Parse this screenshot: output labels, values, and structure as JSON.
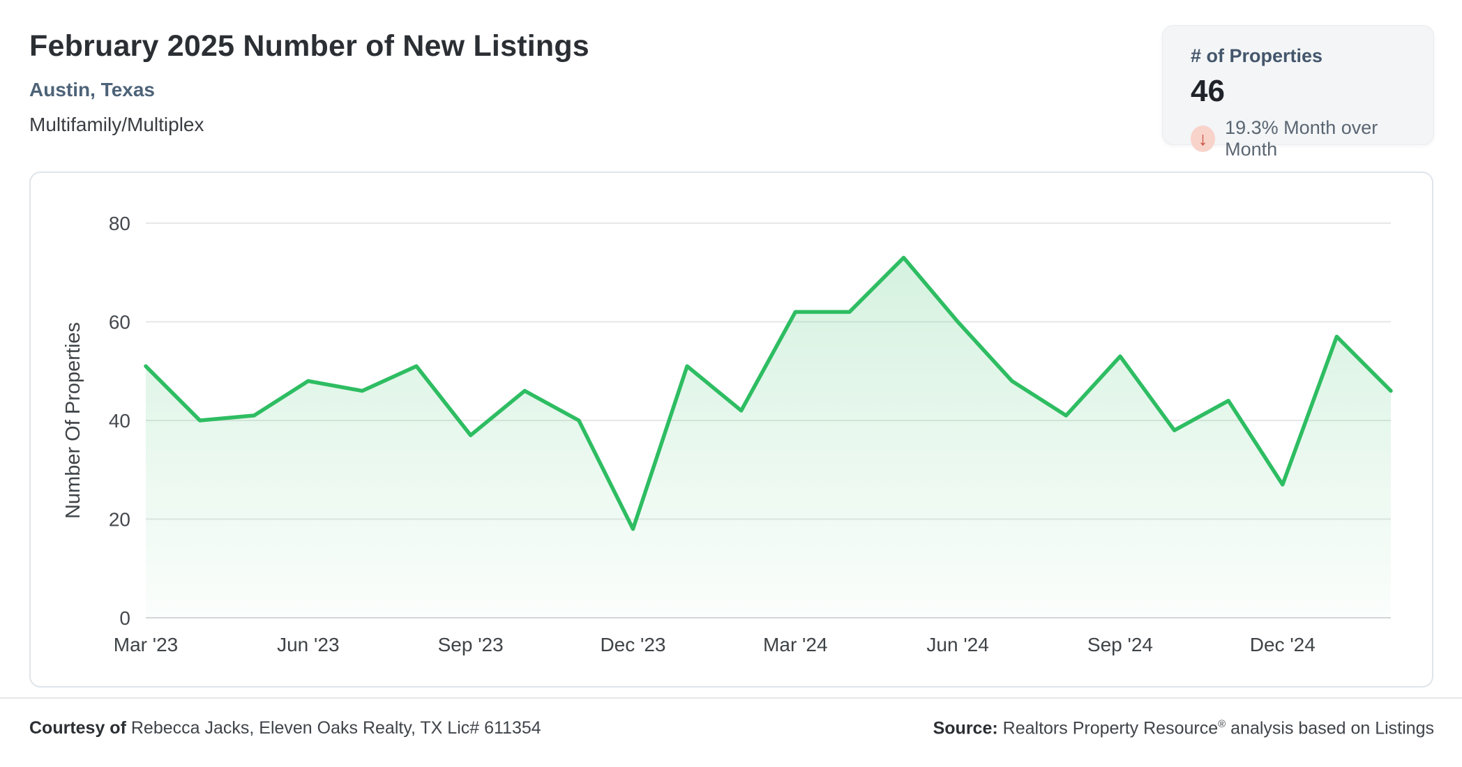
{
  "header": {
    "title": "February 2025 Number of New Listings",
    "location": "Austin, Texas",
    "property_type": "Multifamily/Multiplex"
  },
  "stat_card": {
    "label": "# of Properties",
    "value": "46",
    "arrow_icon": "↓",
    "change_text": "19.3% Month over Month",
    "direction": "down",
    "badge_bg": "#f8d3ca",
    "arrow_color": "#c64a38"
  },
  "chart_data": {
    "type": "area",
    "title": "",
    "x": [
      "Mar '23",
      "Apr '23",
      "May '23",
      "Jun '23",
      "Jul '23",
      "Aug '23",
      "Sep '23",
      "Oct '23",
      "Nov '23",
      "Dec '23",
      "Jan '24",
      "Feb '24",
      "Mar '24",
      "Apr '24",
      "May '24",
      "Jun '24",
      "Jul '24",
      "Aug '24",
      "Sep '24",
      "Oct '24",
      "Nov '24",
      "Dec '24",
      "Jan '25",
      "Feb '25"
    ],
    "values": [
      51,
      40,
      41,
      48,
      46,
      51,
      37,
      46,
      40,
      18,
      51,
      42,
      62,
      62,
      73,
      60,
      48,
      41,
      53,
      38,
      44,
      27,
      57,
      46
    ],
    "ylabel": "Number Of Properties",
    "xlabel": "",
    "ylim": [
      0,
      80
    ],
    "y_ticks": [
      0,
      20,
      40,
      60,
      80
    ],
    "x_tick_every": 3,
    "x_tick_labels": [
      "Mar '23",
      "Jun '23",
      "Sep '23",
      "Dec '23",
      "Mar '24",
      "Jun '24",
      "Sep '24",
      "Dec '24"
    ],
    "grid": true,
    "legend": "none",
    "line_color": "#2ebd62",
    "area_color_top": "rgba(46,189,98,0.20)",
    "area_color_bottom": "rgba(46,189,98,0.02)",
    "gridline_color": "#e7e7e7",
    "baseline_color": "#d2d6d9",
    "tick_text_color": "#45494e",
    "axis_title_color": "#3e4347"
  },
  "footer": {
    "courtesy_label": "Courtesy of",
    "courtesy_text": "Rebecca Jacks, Eleven Oaks Realty, TX Lic# 611354",
    "source_label": "Source:",
    "source_text_pre": "Realtors Property Resource",
    "source_reg": "®",
    "source_text_post": "analysis based on Listings"
  }
}
